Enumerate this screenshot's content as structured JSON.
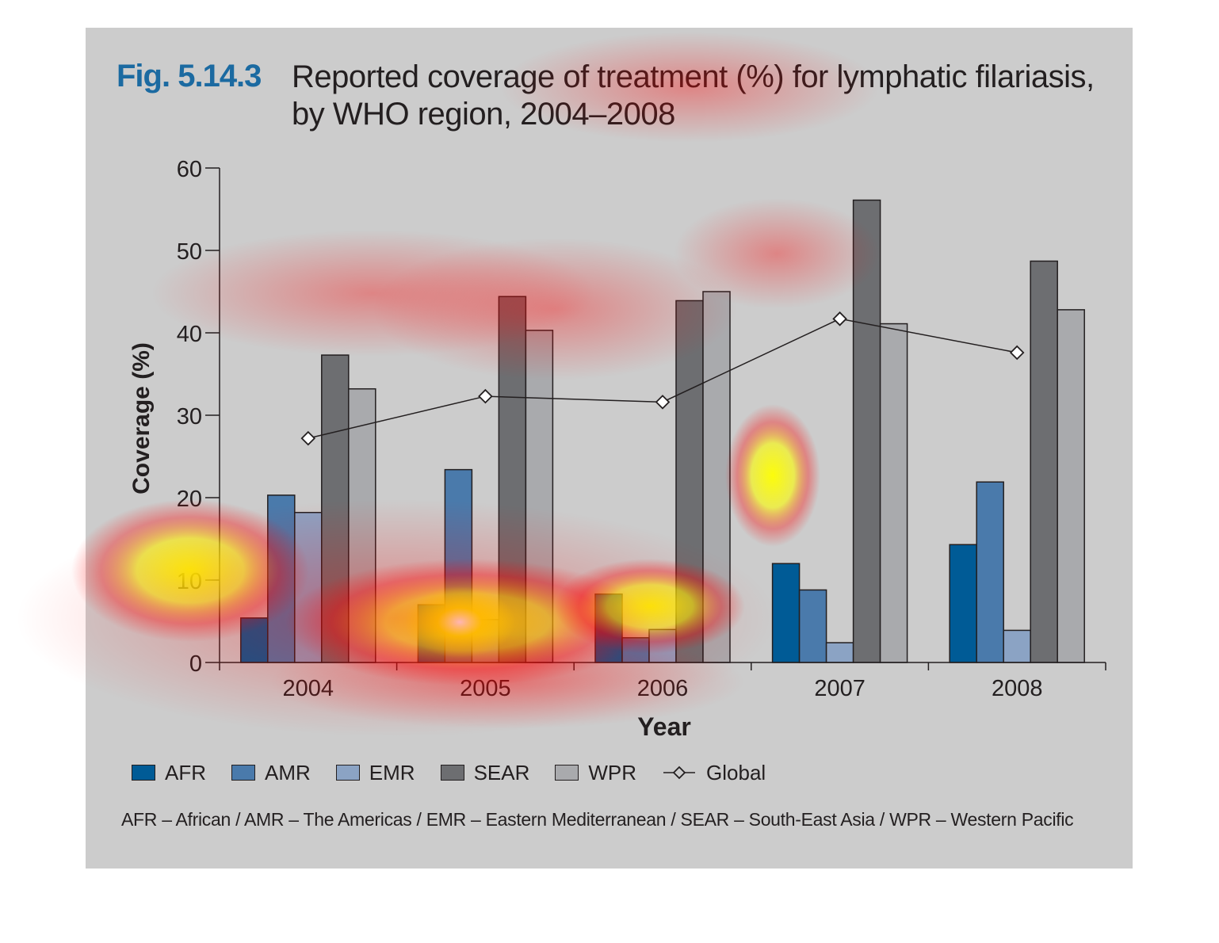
{
  "figure": {
    "label": "Fig. 5.14.3",
    "title_line1": "Reported coverage of treatment (%) for lymphatic filariasis,",
    "title_line2": "by WHO region, 2004–2008"
  },
  "chart_data": {
    "type": "bar",
    "categories": [
      "2004",
      "2005",
      "2006",
      "2007",
      "2008"
    ],
    "series": [
      {
        "name": "AFR",
        "color": "#005b96",
        "values": [
          5.4,
          7.0,
          8.3,
          12.0,
          14.3
        ]
      },
      {
        "name": "AMR",
        "color": "#4a7aab",
        "values": [
          20.3,
          23.4,
          3.0,
          8.8,
          21.9
        ]
      },
      {
        "name": "EMR",
        "color": "#8ba3c4",
        "values": [
          18.2,
          5.2,
          4.0,
          2.4,
          3.9
        ]
      },
      {
        "name": "SEAR",
        "color": "#6d6e71",
        "values": [
          37.3,
          44.4,
          43.9,
          56.1,
          48.7
        ]
      },
      {
        "name": "WPR",
        "color": "#a9aaad",
        "values": [
          33.2,
          40.3,
          45.0,
          41.1,
          42.8
        ]
      }
    ],
    "line_series": {
      "name": "Global",
      "type": "line",
      "marker": "diamond",
      "values": [
        27.2,
        32.3,
        31.6,
        41.7,
        37.6
      ]
    },
    "xlabel": "Year",
    "ylabel": "Coverage (%)",
    "ylim": [
      0,
      60
    ],
    "yticks": [
      "0",
      "10",
      "20",
      "30",
      "40",
      "50",
      "60"
    ],
    "grid": false,
    "legend_position": "bottom"
  },
  "footnote": "AFR – African / AMR – The Americas / EMR – Eastern Mediterranean / SEAR – South-East Asia / WPR – Western Pacific",
  "colors": {
    "background": "#cccccc",
    "title_accent": "#1b6aa1",
    "text": "#231f20",
    "heatmap": [
      "#ff0000",
      "#ffff00",
      "#ffffff"
    ]
  }
}
